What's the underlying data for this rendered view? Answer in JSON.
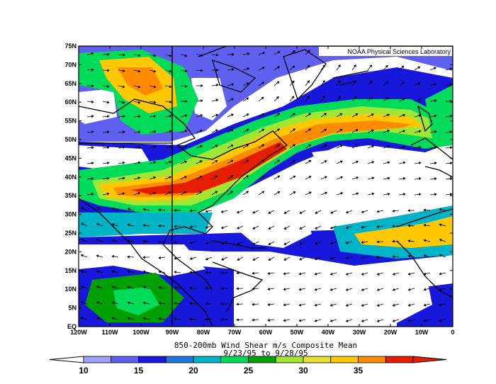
{
  "credit": "NOAA Physical Sciences Laboratory",
  "title_line1": "850-200mb Wind Shear m/s Composite Mean",
  "title_line2": "9/23/95 to 9/28/95",
  "lat_labels": [
    "75N",
    "70N",
    "65N",
    "60N",
    "55N",
    "50N",
    "45N",
    "40N",
    "35N",
    "30N",
    "25N",
    "20N",
    "15N",
    "10N",
    "5N",
    "EQ"
  ],
  "lon_labels": [
    "120W",
    "110W",
    "100W",
    "90W",
    "80W",
    "70W",
    "60W",
    "50W",
    "40W",
    "30W",
    "20W",
    "10W",
    "0"
  ],
  "colorbar": {
    "ticks": [
      "10",
      "15",
      "20",
      "25",
      "30",
      "35"
    ],
    "colors": [
      "#9f9fff",
      "#6060f0",
      "#1818dc",
      "#1e78dc",
      "#00b4c8",
      "#00dc5a",
      "#00a000",
      "#a0e632",
      "#e6dc32",
      "#ffc800",
      "#ff8c00",
      "#e61e00"
    ]
  },
  "map": {
    "lon_range": [
      -120,
      0
    ],
    "lat_range": [
      0,
      75
    ],
    "legend_label": "850-200mb Wind Shear m/s"
  }
}
